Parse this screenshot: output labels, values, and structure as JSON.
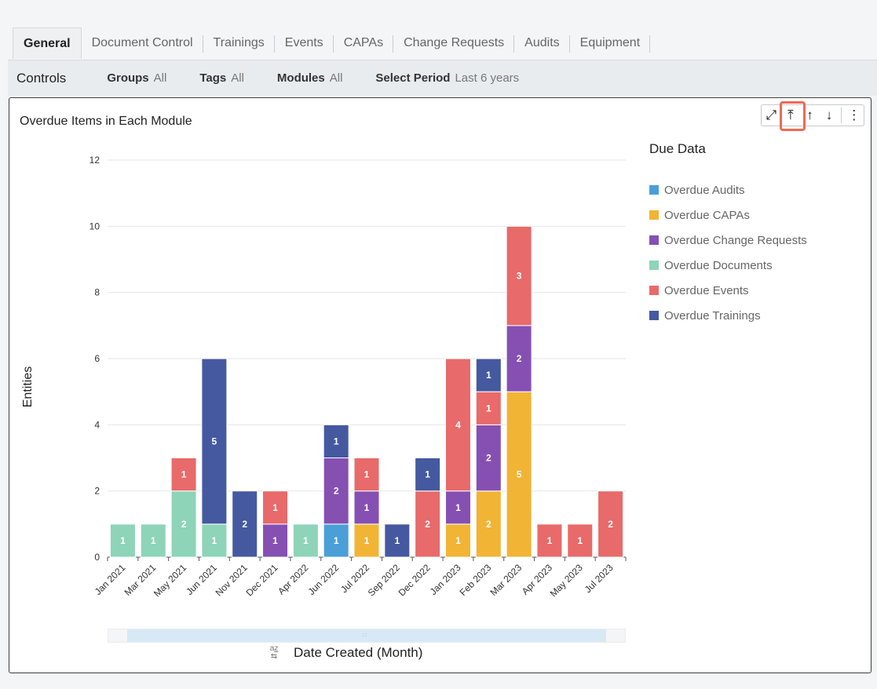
{
  "tabs": [
    "General",
    "Document Control",
    "Trainings",
    "Events",
    "CAPAs",
    "Change Requests",
    "Audits",
    "Equipment"
  ],
  "controls": {
    "title": "Controls",
    "filters": [
      {
        "label": "Groups",
        "value": "All"
      },
      {
        "label": "Tags",
        "value": "All"
      },
      {
        "label": "Modules",
        "value": "All"
      },
      {
        "label": "Select Period",
        "value": "Last 6 years"
      }
    ]
  },
  "toolbar": {
    "icons": [
      "expand-icon",
      "move-to-top-icon",
      "move-up-icon",
      "move-down-icon",
      "more-options-icon"
    ],
    "highlight_color": "#ef6a52"
  },
  "chart_data": {
    "type": "bar",
    "stacked": true,
    "title": "Overdue Items in Each Module",
    "xlabel": "Date Created (Month)",
    "ylabel": "Entities",
    "ylim": [
      0,
      12
    ],
    "yticks": [
      0,
      2,
      4,
      6,
      8,
      10,
      12
    ],
    "grid": true,
    "legend_title": "Due Data",
    "legend_position": "right",
    "categories": [
      "Jan 2021",
      "Mar 2021",
      "May 2021",
      "Jun 2021",
      "Nov 2021",
      "Dec 2021",
      "Apr 2022",
      "Jun 2022",
      "Jul 2022",
      "Sep 2022",
      "Dec 2022",
      "Jan 2023",
      "Feb 2023",
      "Mar 2023",
      "Apr 2023",
      "May 2023",
      "Jul 2023"
    ],
    "series": [
      {
        "name": "Overdue Audits",
        "color": "#4a9fd8",
        "values": [
          0,
          0,
          0,
          0,
          0,
          0,
          0,
          1,
          0,
          0,
          0,
          0,
          0,
          0,
          0,
          0,
          0
        ]
      },
      {
        "name": "Overdue CAPAs",
        "color": "#f2b434",
        "values": [
          0,
          0,
          0,
          0,
          0,
          0,
          0,
          0,
          1,
          0,
          0,
          1,
          2,
          5,
          0,
          0,
          0
        ]
      },
      {
        "name": "Overdue Change Requests",
        "color": "#8650b3",
        "values": [
          0,
          0,
          0,
          0,
          0,
          1,
          0,
          2,
          1,
          0,
          0,
          1,
          2,
          2,
          0,
          0,
          0
        ]
      },
      {
        "name": "Overdue Documents",
        "color": "#8ed4b8",
        "values": [
          1,
          1,
          2,
          1,
          0,
          0,
          1,
          0,
          0,
          0,
          0,
          0,
          0,
          0,
          0,
          0,
          0
        ]
      },
      {
        "name": "Overdue Events",
        "color": "#e86a6a",
        "values": [
          0,
          0,
          1,
          0,
          0,
          1,
          0,
          0,
          1,
          0,
          2,
          4,
          1,
          3,
          1,
          1,
          2
        ]
      },
      {
        "name": "Overdue Trainings",
        "color": "#44599f",
        "values": [
          0,
          0,
          0,
          5,
          2,
          0,
          0,
          1,
          0,
          1,
          1,
          0,
          1,
          0,
          0,
          0,
          0
        ]
      }
    ]
  }
}
